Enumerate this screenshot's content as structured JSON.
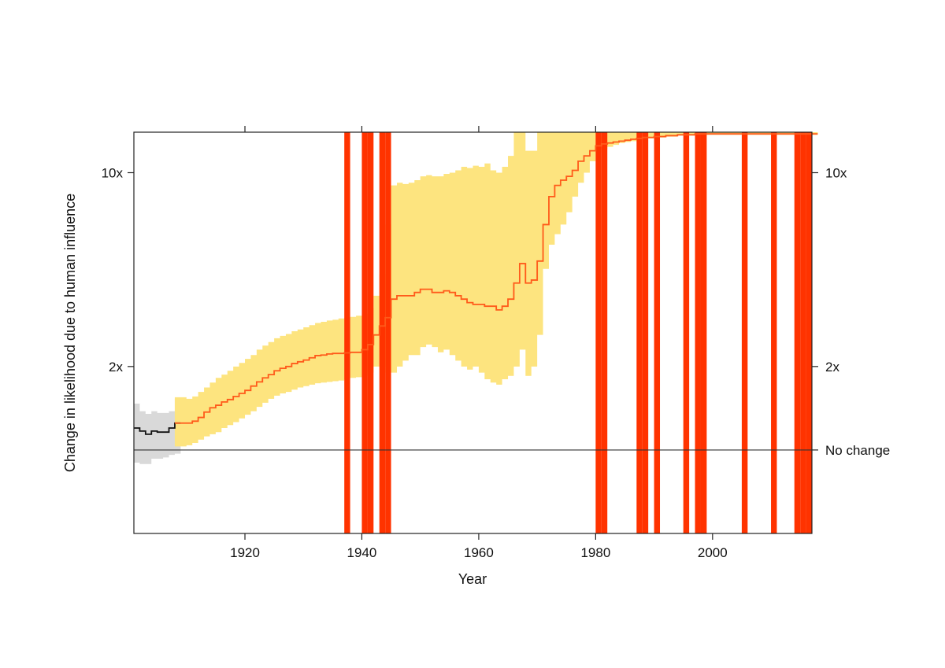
{
  "chart_data": {
    "type": "step-line-with-bands",
    "title": "",
    "xlabel": "Year",
    "ylabel": "Change in likelihood due to human influence",
    "xlim": [
      1901,
      2017
    ],
    "ylim": [
      0.5,
      14
    ],
    "y_scale": "log",
    "x_ticks": [
      1920,
      1940,
      1960,
      1980,
      2000
    ],
    "x_tick_labels": [
      "1920",
      "1940",
      "1960",
      "1980",
      "2000"
    ],
    "y_ticks": [
      1,
      2,
      10
    ],
    "y_tick_labels_left": [
      "",
      "2x",
      "10x"
    ],
    "y_tick_labels_right": [
      "No change",
      "2x",
      "10x"
    ],
    "reference_line": {
      "y": 1,
      "color": "#333333"
    },
    "colors": {
      "observed_period_line": "#111111",
      "observed_period_band": "#d9d9d9",
      "attribution_line": "#ff5a1a",
      "attribution_band": "#fde47f",
      "event_bars": "#ff3300"
    },
    "event_years": [
      1937,
      1940,
      1941,
      1943,
      1944,
      1980,
      1981,
      1987,
      1988,
      1990,
      1995,
      1997,
      1998,
      2005,
      2010,
      2014,
      2015,
      2016
    ],
    "early_series": {
      "years": [
        1901,
        1902,
        1903,
        1904,
        1905,
        1906,
        1907,
        1908
      ],
      "median": [
        1.2,
        1.17,
        1.14,
        1.17,
        1.16,
        1.16,
        1.2,
        1.25
      ],
      "lower": [
        0.9,
        0.89,
        0.89,
        0.93,
        0.93,
        0.94,
        0.96,
        0.97
      ],
      "upper": [
        1.47,
        1.38,
        1.35,
        1.38,
        1.36,
        1.36,
        1.38,
        1.53
      ]
    },
    "series": {
      "years": [
        1908,
        1909,
        1910,
        1911,
        1912,
        1913,
        1914,
        1915,
        1916,
        1917,
        1918,
        1919,
        1920,
        1921,
        1922,
        1923,
        1924,
        1925,
        1926,
        1927,
        1928,
        1929,
        1930,
        1931,
        1932,
        1933,
        1934,
        1935,
        1936,
        1937,
        1938,
        1939,
        1940,
        1941,
        1942,
        1943,
        1944,
        1945,
        1946,
        1947,
        1948,
        1949,
        1950,
        1951,
        1952,
        1953,
        1954,
        1955,
        1956,
        1957,
        1958,
        1959,
        1960,
        1961,
        1962,
        1963,
        1964,
        1965,
        1966,
        1967,
        1968,
        1969,
        1970,
        1971,
        1972,
        1973,
        1974,
        1975,
        1976,
        1977,
        1978,
        1979,
        1980,
        1981,
        1982,
        1983,
        1984,
        1985,
        1986,
        1987,
        1988,
        1989,
        1990,
        1991,
        1992,
        1993,
        1994,
        1995,
        1996,
        1997,
        1998,
        1999,
        2000,
        2001,
        2002,
        2003,
        2004,
        2005,
        2006,
        2007,
        2008,
        2009,
        2010,
        2011,
        2012,
        2013,
        2014,
        2015,
        2016,
        2017
      ],
      "median": [
        1.25,
        1.25,
        1.25,
        1.27,
        1.31,
        1.37,
        1.42,
        1.45,
        1.49,
        1.52,
        1.56,
        1.6,
        1.64,
        1.7,
        1.76,
        1.82,
        1.87,
        1.93,
        1.97,
        2.0,
        2.05,
        2.08,
        2.11,
        2.15,
        2.19,
        2.2,
        2.22,
        2.23,
        2.23,
        2.24,
        2.25,
        2.25,
        2.3,
        2.4,
        2.6,
        2.8,
        3.0,
        3.5,
        3.6,
        3.6,
        3.6,
        3.7,
        3.8,
        3.8,
        3.7,
        3.7,
        3.75,
        3.7,
        3.6,
        3.5,
        3.4,
        3.35,
        3.35,
        3.3,
        3.3,
        3.2,
        3.3,
        3.5,
        4.0,
        4.7,
        4.0,
        4.1,
        4.8,
        6.5,
        8.2,
        9.0,
        9.4,
        9.7,
        10.2,
        11.0,
        11.5,
        12.0,
        12.5,
        12.7,
        12.8,
        12.9,
        13.0,
        13.1,
        13.2,
        13.3,
        13.4,
        13.4,
        13.5,
        13.5,
        13.6,
        13.6,
        13.7,
        13.7,
        13.7,
        13.8,
        13.8,
        13.8,
        13.8,
        13.8,
        13.8,
        13.8,
        13.8,
        13.8,
        13.8,
        13.8,
        13.8,
        13.8,
        13.8,
        13.8,
        13.8,
        13.8,
        13.8,
        13.8,
        13.8,
        13.8
      ],
      "lower": [
        1.03,
        1.03,
        1.04,
        1.06,
        1.09,
        1.12,
        1.14,
        1.16,
        1.2,
        1.23,
        1.26,
        1.3,
        1.34,
        1.38,
        1.43,
        1.48,
        1.53,
        1.57,
        1.6,
        1.62,
        1.65,
        1.68,
        1.7,
        1.72,
        1.74,
        1.75,
        1.76,
        1.77,
        1.78,
        1.8,
        1.82,
        1.83,
        1.85,
        1.9,
        2.0,
        2.0,
        1.9,
        1.9,
        2.0,
        2.1,
        2.2,
        2.2,
        2.35,
        2.4,
        2.35,
        2.25,
        2.3,
        2.2,
        2.1,
        2.0,
        1.95,
        2.0,
        1.9,
        1.8,
        1.75,
        1.72,
        1.8,
        1.85,
        2.0,
        2.3,
        1.85,
        2.0,
        2.6,
        4.5,
        5.5,
        6.0,
        6.5,
        7.2,
        8.2,
        9.2,
        10.0,
        11.0,
        11.8,
        12.2,
        12.4,
        12.6,
        12.8,
        12.9,
        13.0,
        13.2,
        13.3,
        13.3,
        13.4,
        13.4,
        13.5,
        13.5,
        13.6,
        13.6,
        13.6,
        13.7,
        13.7,
        13.7,
        13.7,
        13.7,
        13.7,
        13.7,
        13.7,
        13.7,
        13.7,
        13.7,
        13.7,
        13.7,
        13.7,
        13.7,
        13.7,
        13.7,
        13.7,
        13.7,
        13.7,
        13.7
      ],
      "upper": [
        1.55,
        1.55,
        1.53,
        1.56,
        1.62,
        1.68,
        1.75,
        1.82,
        1.87,
        1.93,
        2.0,
        2.06,
        2.13,
        2.2,
        2.3,
        2.38,
        2.45,
        2.53,
        2.58,
        2.62,
        2.68,
        2.72,
        2.77,
        2.82,
        2.87,
        2.9,
        2.93,
        2.95,
        2.98,
        3.0,
        3.02,
        3.05,
        3.1,
        3.25,
        3.6,
        4.3,
        6.5,
        9.0,
        9.2,
        9.1,
        9.2,
        9.4,
        9.7,
        9.8,
        9.7,
        9.7,
        9.9,
        10.0,
        10.2,
        10.5,
        10.4,
        10.6,
        10.5,
        10.8,
        10.2,
        10.0,
        10.5,
        11.5,
        14,
        14,
        12,
        12,
        14,
        14,
        14,
        14,
        14,
        14,
        14,
        14,
        14,
        14,
        14,
        14,
        14,
        14,
        14,
        14,
        14,
        14,
        14,
        14,
        14,
        14,
        14,
        14,
        14,
        14,
        14,
        14,
        14,
        14,
        14,
        14,
        14,
        14,
        14,
        14,
        14,
        14,
        14,
        14,
        14,
        14,
        14,
        14,
        14,
        14,
        14,
        14
      ]
    }
  }
}
